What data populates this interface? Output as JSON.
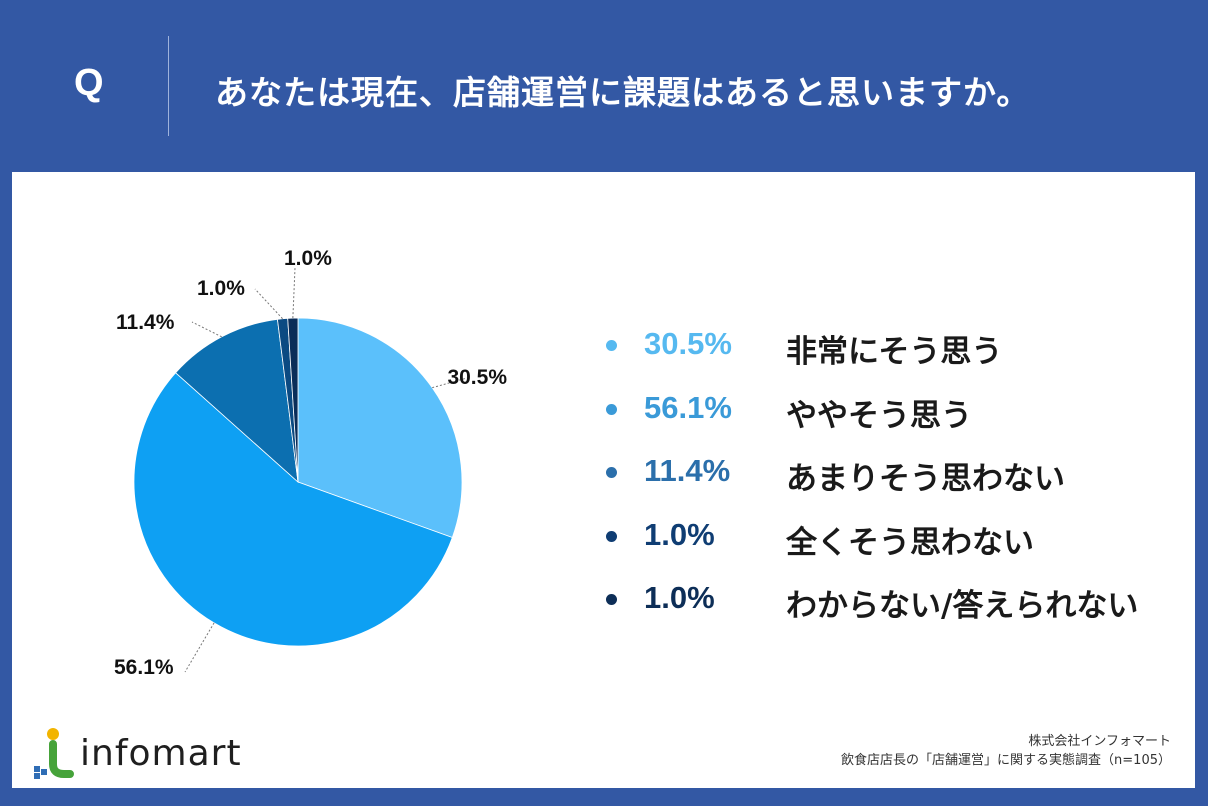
{
  "header": {
    "q_letter": "Q",
    "question": "あなたは現在、店舗運営に課題はあると思いますか。"
  },
  "chart_data": {
    "type": "pie",
    "slices": [
      {
        "label": "非常にそう思う",
        "value": 30.5,
        "display": "30.5%",
        "color": "#5bc0fb"
      },
      {
        "label": "ややそう思う",
        "value": 56.1,
        "display": "56.1%",
        "color": "#0ea0f3"
      },
      {
        "label": "あまりそう思わない",
        "value": 11.4,
        "display": "11.4%",
        "color": "#0c6fb0"
      },
      {
        "label": "全くそう思わない",
        "value": 1.0,
        "display": "1.0%",
        "color": "#0b4a82"
      },
      {
        "label": "わからない/答えられない",
        "value": 1.0,
        "display": "1.0%",
        "color": "#0a2d59"
      }
    ],
    "legend_text_colors": [
      "#56b9f0",
      "#3a9ad8",
      "#2b6fab",
      "#0f3d73",
      "#0d2e57"
    ],
    "legend_placement": "right"
  },
  "brand": {
    "logo_text": "infomart"
  },
  "source": {
    "company": "株式会社インフォマート",
    "survey": "飲食店店長の「店舗運営」に関する実態調査（n=105）"
  }
}
